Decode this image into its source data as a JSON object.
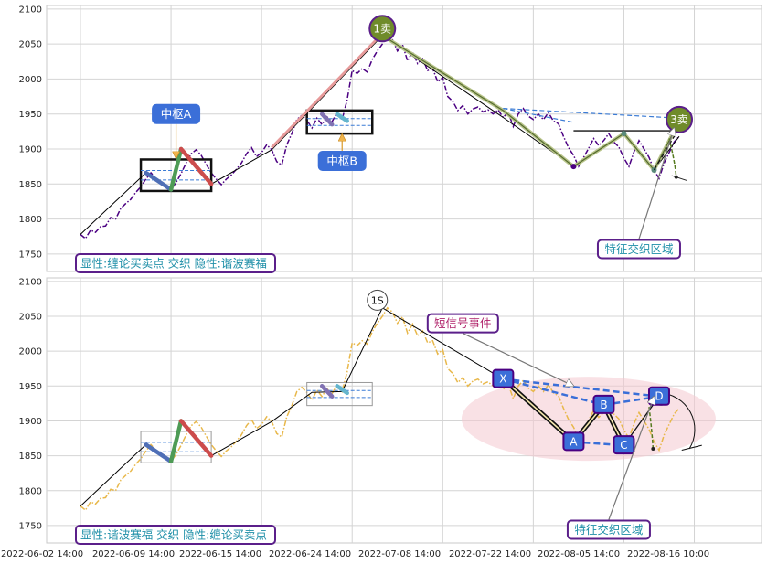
{
  "chart_data": [
    {
      "type": "line",
      "panel": "top",
      "ylim": [
        1725,
        2105
      ],
      "y_ticks": [
        "2100",
        "2050",
        "2000",
        "1950",
        "1900",
        "1850",
        "1800",
        "1750"
      ],
      "price_color": "#4b0082",
      "price_style": "dash-dot",
      "price": [
        [
          0,
          1778
        ],
        [
          1,
          1772
        ],
        [
          2,
          1784
        ],
        [
          3,
          1781
        ],
        [
          4,
          1789
        ],
        [
          5,
          1790
        ],
        [
          6,
          1802
        ],
        [
          7,
          1800
        ],
        [
          8,
          1815
        ],
        [
          9,
          1822
        ],
        [
          10,
          1828
        ],
        [
          11,
          1838
        ],
        [
          12,
          1846
        ],
        [
          13,
          1857
        ],
        [
          14,
          1866
        ],
        [
          15,
          1858
        ],
        [
          16,
          1852
        ],
        [
          17,
          1846
        ],
        [
          18,
          1842
        ],
        [
          19,
          1852
        ],
        [
          20,
          1865
        ],
        [
          21,
          1880
        ],
        [
          22,
          1893
        ],
        [
          23,
          1899
        ],
        [
          24,
          1891
        ],
        [
          25,
          1878
        ],
        [
          26,
          1866
        ],
        [
          27,
          1857
        ],
        [
          28,
          1849
        ],
        [
          29,
          1857
        ],
        [
          30,
          1863
        ],
        [
          31,
          1871
        ],
        [
          32,
          1880
        ],
        [
          33,
          1893
        ],
        [
          34,
          1902
        ],
        [
          35,
          1889
        ],
        [
          36,
          1895
        ],
        [
          37,
          1906
        ],
        [
          38,
          1899
        ],
        [
          39,
          1882
        ],
        [
          40,
          1877
        ],
        [
          41,
          1906
        ],
        [
          42,
          1922
        ],
        [
          43,
          1942
        ],
        [
          44,
          1948
        ],
        [
          45,
          1941
        ],
        [
          46,
          1930
        ],
        [
          47,
          1944
        ],
        [
          48,
          1935
        ],
        [
          49,
          1946
        ],
        [
          50,
          1939
        ],
        [
          51,
          1952
        ],
        [
          52,
          1942
        ],
        [
          53,
          1970
        ],
        [
          54,
          2012
        ],
        [
          55,
          2008
        ],
        [
          56,
          2015
        ],
        [
          57,
          2010
        ],
        [
          58,
          2028
        ],
        [
          59,
          2040
        ],
        [
          60,
          2050
        ],
        [
          61,
          2062
        ],
        [
          62,
          2056
        ],
        [
          63,
          2040
        ],
        [
          64,
          2049
        ],
        [
          65,
          2026
        ],
        [
          66,
          2039
        ],
        [
          67,
          2022
        ],
        [
          68,
          2029
        ],
        [
          69,
          2012
        ],
        [
          70,
          2015
        ],
        [
          71,
          1996
        ],
        [
          72,
          2002
        ],
        [
          73,
          1975
        ],
        [
          74,
          1968
        ],
        [
          75,
          1955
        ],
        [
          76,
          1962
        ],
        [
          77,
          1950
        ],
        [
          78,
          1957
        ],
        [
          79,
          1960
        ],
        [
          80,
          1953
        ],
        [
          81,
          1956
        ],
        [
          82,
          1950
        ],
        [
          83,
          1956
        ],
        [
          84,
          1945
        ],
        [
          85,
          1953
        ],
        [
          86,
          1932
        ],
        [
          87,
          1950
        ],
        [
          88,
          1958
        ],
        [
          89,
          1947
        ],
        [
          90,
          1942
        ],
        [
          91,
          1950
        ],
        [
          92,
          1942
        ],
        [
          93,
          1952
        ],
        [
          94,
          1940
        ],
        [
          95,
          1936
        ],
        [
          96,
          1918
        ],
        [
          97,
          1902
        ],
        [
          98,
          1891
        ],
        [
          99,
          1875
        ],
        [
          100,
          1888
        ],
        [
          101,
          1901
        ],
        [
          102,
          1915
        ],
        [
          103,
          1905
        ],
        [
          104,
          1912
        ],
        [
          105,
          1922
        ],
        [
          106,
          1910
        ],
        [
          107,
          1903
        ],
        [
          108,
          1887
        ],
        [
          109,
          1875
        ],
        [
          110,
          1896
        ],
        [
          111,
          1912
        ],
        [
          112,
          1900
        ],
        [
          113,
          1888
        ],
        [
          114,
          1870
        ],
        [
          115,
          1858
        ],
        [
          116,
          1880
        ],
        [
          117,
          1895
        ],
        [
          118,
          1910
        ],
        [
          119,
          1918
        ]
      ],
      "stroke_lines": [
        {
          "color": "#000000",
          "points": [
            [
              0,
              1778
            ],
            [
              13,
              1866
            ],
            [
              18,
              1842
            ],
            [
              20,
              1900
            ],
            [
              26,
              1850
            ],
            [
              38,
              1899
            ],
            [
              60,
              2062
            ],
            [
              84,
              1945
            ],
            [
              98,
              1875
            ],
            [
              108,
              1922
            ],
            [
              114,
              1870
            ],
            [
              119,
              1918
            ]
          ]
        }
      ],
      "segments": [
        {
          "color": "#4f6fb6",
          "from": [
            13,
            1866
          ],
          "to": [
            18,
            1842
          ]
        },
        {
          "color": "#4e9b55",
          "from": [
            18,
            1842
          ],
          "to": [
            20,
            1900
          ]
        },
        {
          "color": "#cc4c4c",
          "from": [
            20,
            1900
          ],
          "to": [
            26,
            1850
          ]
        },
        {
          "color": "#8172b2",
          "from": [
            48,
            1950
          ],
          "to": [
            50,
            1935
          ]
        },
        {
          "color": "#64b5cd",
          "from": [
            51,
            1950
          ],
          "to": [
            53,
            1940
          ]
        }
      ],
      "zhongshu": [
        {
          "from": [
            12,
            1840
          ],
          "to": [
            26,
            1885
          ]
        },
        {
          "from": [
            45,
            1922
          ],
          "to": [
            58,
            1955
          ]
        }
      ],
      "harmonic_lines": [
        {
          "points": [
            [
              60,
              2062
            ],
            [
              84,
              1955
            ],
            [
              98,
              1875
            ],
            [
              108,
              1922
            ],
            [
              114,
              1870
            ],
            [
              119,
              1940
            ]
          ]
        }
      ],
      "signals": [
        {
          "label": "1卖",
          "x": 60,
          "y": 2072
        },
        {
          "label": "3卖",
          "x": 119,
          "y": 1942
        }
      ],
      "annotations": [
        {
          "text": "中枢A",
          "point": [
            19,
            1887
          ],
          "box": [
            19,
            1950
          ]
        },
        {
          "text": "中枢B",
          "point": [
            52,
            1921
          ],
          "box": [
            52,
            1883
          ]
        },
        {
          "text": "特征交织区域",
          "point": [
            118,
            1930
          ],
          "box": [
            111,
            1757
          ]
        }
      ],
      "legend_text": "显性:缠论买卖点 交织 隐性:谐波赛福"
    },
    {
      "type": "line",
      "panel": "bottom",
      "ylim": [
        1725,
        2105
      ],
      "y_ticks": [
        "2100",
        "2050",
        "2000",
        "1950",
        "1900",
        "1850",
        "1800",
        "1750"
      ],
      "price_color": "#e8b84b",
      "price_style": "dash-dot",
      "x_tick_labels": [
        "2022-06-02 14:00",
        "2022-06-09 14:00",
        "2022-06-15 14:00",
        "2022-06-24 14:00",
        "2022-07-08 14:00",
        "2022-07-22 14:00",
        "2022-08-05 14:00",
        "2022-08-16 10:00"
      ],
      "stroke_lines": [
        {
          "color": "#000000",
          "points": [
            [
              0,
              1778
            ],
            [
              13,
              1866
            ],
            [
              18,
              1842
            ],
            [
              20,
              1900
            ],
            [
              26,
              1850
            ],
            [
              38,
              1899
            ],
            [
              46,
              1941
            ],
            [
              52,
              1942
            ],
            [
              60,
              2062
            ],
            [
              84,
              1960
            ]
          ]
        }
      ],
      "segments": [
        {
          "color": "#4f6fb6",
          "from": [
            13,
            1866
          ],
          "to": [
            18,
            1842
          ]
        },
        {
          "color": "#4e9b55",
          "from": [
            18,
            1842
          ],
          "to": [
            20,
            1900
          ]
        },
        {
          "color": "#cc4c4c",
          "from": [
            20,
            1900
          ],
          "to": [
            26,
            1850
          ]
        },
        {
          "color": "#8172b2",
          "from": [
            48,
            1950
          ],
          "to": [
            50,
            1935
          ]
        },
        {
          "color": "#64b5cd",
          "from": [
            51,
            1950
          ],
          "to": [
            53,
            1940
          ]
        }
      ],
      "zhongshu": [
        {
          "from": [
            12,
            1840
          ],
          "to": [
            26,
            1885
          ]
        },
        {
          "from": [
            45,
            1922
          ],
          "to": [
            58,
            1955
          ]
        }
      ],
      "pattern": [
        {
          "label": "X",
          "x": 84,
          "y": 1960
        },
        {
          "label": "A",
          "x": 98,
          "y": 1870
        },
        {
          "label": "B",
          "x": 104,
          "y": 1923
        },
        {
          "label": "C",
          "x": 108,
          "y": 1865
        },
        {
          "label": "D",
          "x": 115,
          "y": 1935
        }
      ],
      "signals": [
        {
          "label": "1S",
          "x": 59,
          "y": 2073
        }
      ],
      "annotations": [
        {
          "text": "短信号事件",
          "point": [
            98,
            1950
          ],
          "box": [
            76,
            2040
          ]
        },
        {
          "text": "特征交织区域",
          "point": [
            114,
            1935
          ],
          "box": [
            105,
            1744
          ]
        }
      ],
      "legend_text": "显性:谐波赛福 交织 隐性:缠论买卖点"
    }
  ]
}
